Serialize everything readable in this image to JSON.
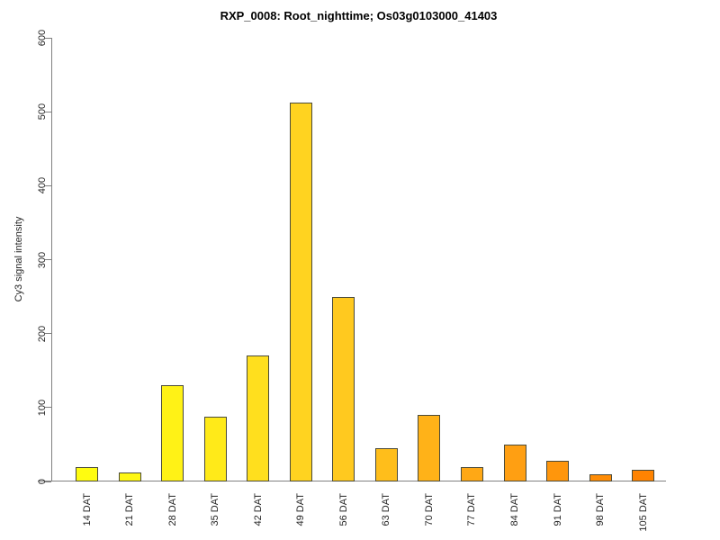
{
  "figure": {
    "title": "RXP_0008: Root_nighttime; Os03g0103000_41403"
  },
  "chart_data": {
    "type": "bar",
    "title": "RXP_0008: Root_nighttime; Os03g0103000_41403",
    "categories": [
      "14 DAT",
      "21 DAT",
      "28 DAT",
      "35 DAT",
      "42 DAT",
      "49 DAT",
      "56 DAT",
      "63 DAT",
      "70 DAT",
      "77 DAT",
      "84 DAT",
      "91 DAT",
      "98 DAT",
      "105 DAT"
    ],
    "values": [
      20,
      12,
      130,
      88,
      170,
      512,
      250,
      45,
      90,
      20,
      50,
      28,
      10,
      16
    ],
    "bar_colors": [
      "#FFFC10",
      "#FFF713",
      "#FFF216",
      "#FFEA19",
      "#FFDF1E",
      "#FFD320",
      "#FFC91F",
      "#FFBE1B",
      "#FFB218",
      "#FFA815",
      "#FF9F12",
      "#FF960C",
      "#FF8C06",
      "#FF8301"
    ],
    "xlabel": "",
    "ylabel": "Cy3 signal intensity",
    "ylim": [
      0,
      600
    ],
    "yticks": [
      0,
      100,
      200,
      300,
      400,
      500,
      600
    ],
    "grid": false,
    "legend": false,
    "background": "#FFFFFF",
    "axis_color": "#808080",
    "text_color": "#262626",
    "bar_border_color": "#4A4A3A"
  }
}
